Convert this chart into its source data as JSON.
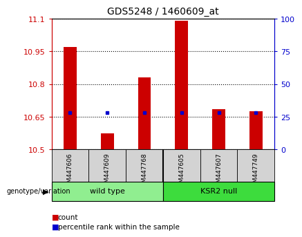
{
  "title": "GDS5248 / 1460609_at",
  "samples": [
    "GSM447606",
    "GSM447609",
    "GSM447768",
    "GSM447605",
    "GSM447607",
    "GSM447749"
  ],
  "count_values": [
    10.97,
    10.575,
    10.83,
    11.09,
    10.685,
    10.675
  ],
  "percentile_values": [
    10.668,
    10.668,
    10.668,
    10.668,
    10.668,
    10.668
  ],
  "ylim_left": [
    10.5,
    11.1
  ],
  "ylim_right": [
    0,
    100
  ],
  "yticks_left": [
    10.5,
    10.65,
    10.8,
    10.95,
    11.1
  ],
  "yticks_right": [
    0,
    25,
    50,
    75,
    100
  ],
  "ytick_labels_left": [
    "10.5",
    "10.65",
    "10.8",
    "10.95",
    "11.1"
  ],
  "ytick_labels_right": [
    "0",
    "25",
    "50",
    "75",
    "100"
  ],
  "bar_color": "#cc0000",
  "percentile_color": "#0000cc",
  "bar_width": 0.35,
  "tick_area_bg": "#d3d3d3",
  "left_tick_color": "#cc0000",
  "right_tick_color": "#0000cc",
  "wt_color": "#90ee90",
  "ksr_color": "#3ddc3d"
}
